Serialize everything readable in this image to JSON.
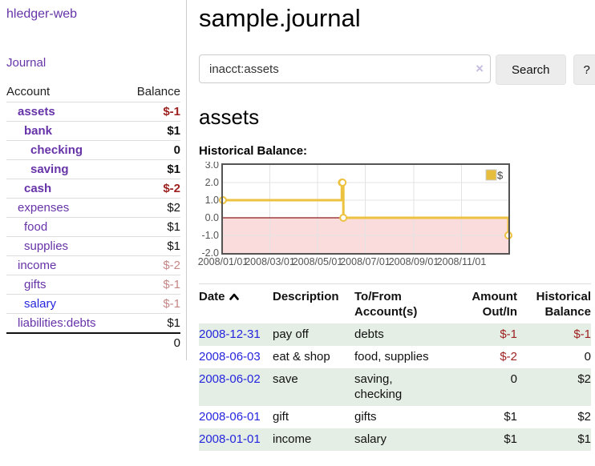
{
  "sidebar": {
    "brand": "hledger-web",
    "journal_link": "Journal",
    "accounts": {
      "col_account": "Account",
      "col_balance": "Balance",
      "rows": [
        {
          "name": "assets",
          "balance": "$-1"
        },
        {
          "name": "bank",
          "balance": "$1"
        },
        {
          "name": "checking",
          "balance": "0"
        },
        {
          "name": "saving",
          "balance": "$1"
        },
        {
          "name": "cash",
          "balance": "$-2"
        },
        {
          "name": "expenses",
          "balance": "$2"
        },
        {
          "name": "food",
          "balance": "$1"
        },
        {
          "name": "supplies",
          "balance": "$1"
        },
        {
          "name": "income",
          "balance": "$-2"
        },
        {
          "name": "gifts",
          "balance": "$-1"
        },
        {
          "name": "salary",
          "balance": "$-1"
        },
        {
          "name": "liabilities:debts",
          "balance": "$1"
        }
      ],
      "total": "0"
    }
  },
  "main": {
    "title": "sample.journal",
    "search": {
      "value": "inacct:assets",
      "clear_icon": "×",
      "button_label": "Search",
      "help_label": "?"
    },
    "account_heading": "assets",
    "register": {
      "headers": {
        "date": "Date",
        "description": "Description",
        "accounts": "To/From Account(s)",
        "amount": "Amount Out/In",
        "balance": "Historical Balance"
      },
      "rows": [
        {
          "date": "2008-12-31",
          "description": "pay off",
          "accounts": "debts",
          "amount": "$-1",
          "balance": "$-1"
        },
        {
          "date": "2008-06-03",
          "description": "eat & shop",
          "accounts": "food, supplies",
          "amount": "$-2",
          "balance": "0"
        },
        {
          "date": "2008-06-02",
          "description": "save",
          "accounts": "saving, checking",
          "amount": "0",
          "balance": "$2"
        },
        {
          "date": "2008-06-01",
          "description": "gift",
          "accounts": "gifts",
          "amount": "$1",
          "balance": "$2"
        },
        {
          "date": "2008-01-01",
          "description": "income",
          "accounts": "salary",
          "amount": "$1",
          "balance": "$1"
        }
      ]
    }
  },
  "chart_data": {
    "type": "line",
    "title": "Historical Balance:",
    "step": true,
    "series": [
      {
        "name": "$",
        "points": [
          [
            "2008-01-01",
            1
          ],
          [
            "2008-06-01",
            2
          ],
          [
            "2008-06-02",
            2
          ],
          [
            "2008-06-03",
            0
          ],
          [
            "2008-12-31",
            -1
          ]
        ]
      }
    ],
    "x_range": [
      "2008-01-01",
      "2008-12-31"
    ],
    "ylim": [
      -2.0,
      3.0
    ],
    "yticks": [
      "3.0",
      "2.0",
      "1.0",
      "0.0",
      "-1.0",
      "-2.0"
    ],
    "xticks": [
      "2008/01/01",
      "2008/03/01",
      "2008/05/01",
      "2008/07/01",
      "2008/09/01",
      "2008/11/01"
    ],
    "legend": "$",
    "legend_position": "top-right",
    "colors": {
      "line": "#edc240",
      "marker_fill": "#ffffff",
      "negative_fill": "#fbdcdc",
      "zero_line": "#8b1a1a",
      "grid": "#e3e3e3",
      "border": "#545454",
      "link_purple": "#6633a8",
      "link_blue": "#2525dd",
      "negative_text": "#9e2121",
      "negative_text_soft": "#c78686",
      "row_green": "#e5eee5"
    }
  }
}
